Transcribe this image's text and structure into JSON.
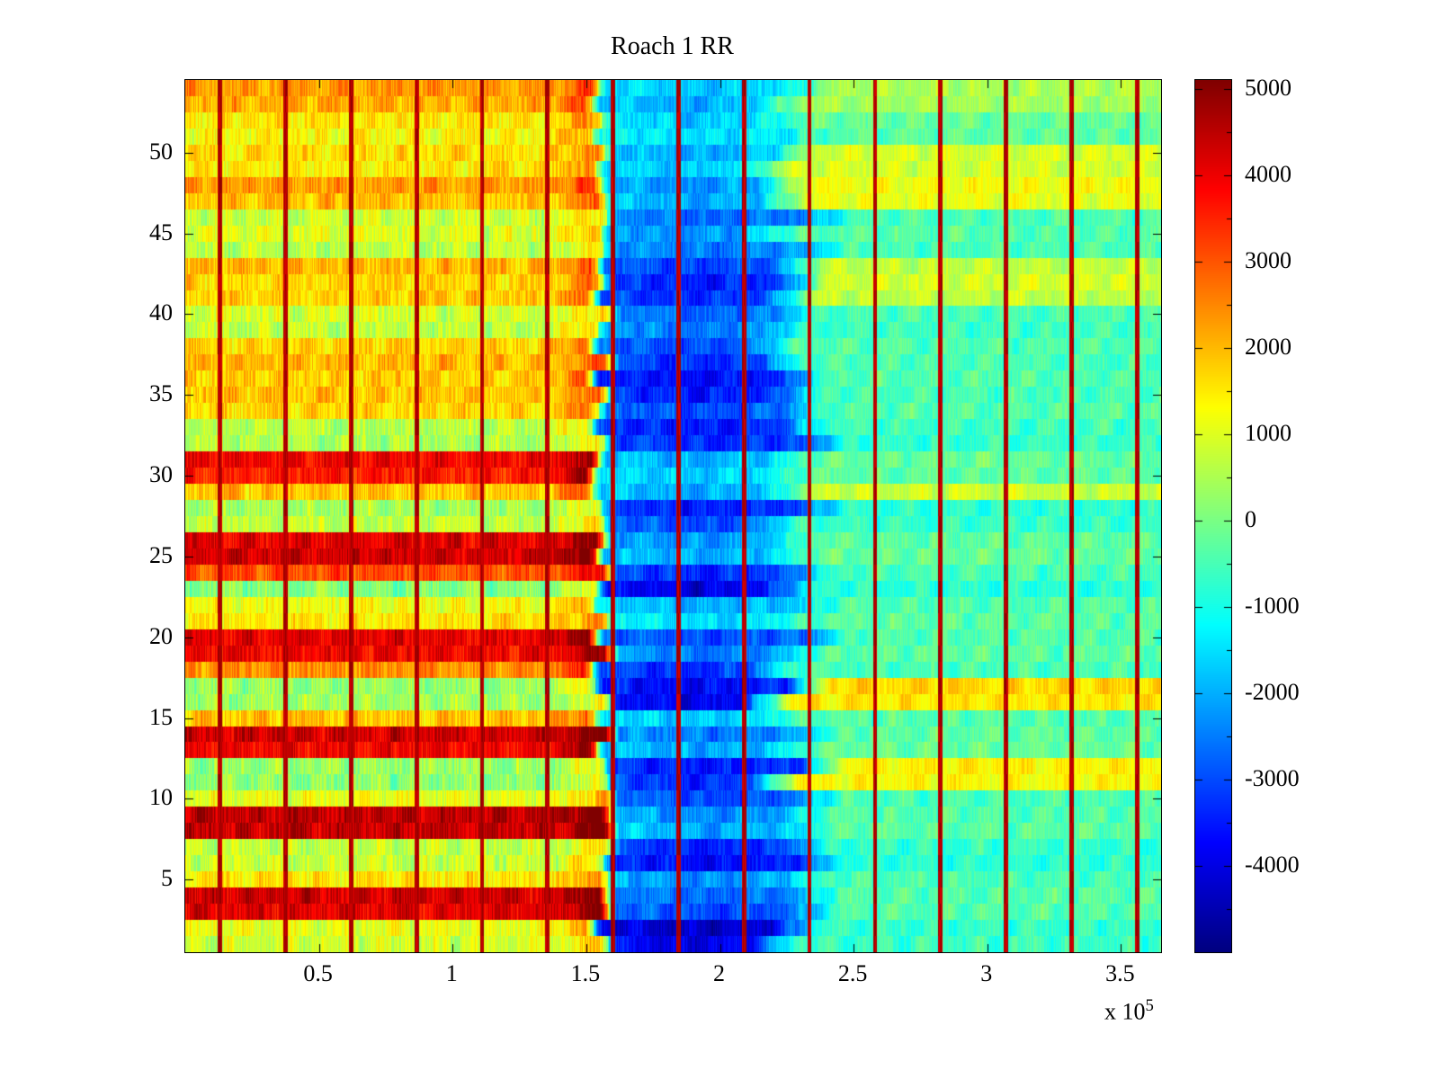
{
  "chart_data": {
    "type": "heatmap",
    "title": "Roach 1 RR",
    "colormap": "jet",
    "xlim": [
      0,
      365000
    ],
    "ylim": [
      0.5,
      54.5
    ],
    "clim": [
      -5000,
      5100
    ],
    "x_ticks": [
      50000,
      100000,
      150000,
      200000,
      250000,
      300000,
      350000
    ],
    "x_tick_labels": [
      "0.5",
      "1",
      "1.5",
      "2",
      "2.5",
      "3",
      "3.5"
    ],
    "x_exponent_label": {
      "text": "x 10",
      "exponent": "5"
    },
    "y_ticks": [
      5,
      10,
      15,
      20,
      25,
      30,
      35,
      40,
      45,
      50
    ],
    "colorbar": {
      "tick_values": [
        5000,
        4000,
        3000,
        2000,
        1000,
        0,
        -1000,
        -2000,
        -3000,
        -4000
      ],
      "minor_tick_step": 500
    },
    "regions": {
      "left_end": 156000,
      "mid_end": 230000
    },
    "stripes_x": [
      13000,
      37500,
      62000,
      86500,
      111000,
      135500,
      160000,
      184500,
      209000,
      233500,
      258000,
      282500,
      307000,
      331500,
      356000
    ],
    "row_segment_labels": [
      "left_region",
      "blue_band",
      "right_region"
    ],
    "rows_bottom_to_top": [
      [
        900,
        -3600,
        -600
      ],
      [
        1100,
        -3900,
        -700
      ],
      [
        4100,
        -2600,
        -400
      ],
      [
        4300,
        -2300,
        -400
      ],
      [
        1500,
        -1900,
        -500
      ],
      [
        800,
        -3300,
        -800
      ],
      [
        700,
        -3000,
        -700
      ],
      [
        4400,
        -1600,
        -300
      ],
      [
        4500,
        -1900,
        -400
      ],
      [
        1100,
        -2600,
        -500
      ],
      [
        200,
        -2900,
        1300
      ],
      [
        300,
        -3100,
        1400
      ],
      [
        3900,
        -1600,
        -200
      ],
      [
        4300,
        -2100,
        -300
      ],
      [
        1900,
        -1300,
        -400
      ],
      [
        400,
        -3500,
        1500
      ],
      [
        300,
        -3300,
        1700
      ],
      [
        2400,
        -2900,
        -500
      ],
      [
        3900,
        -2100,
        -300
      ],
      [
        4100,
        -2600,
        -400
      ],
      [
        1500,
        -1100,
        -300
      ],
      [
        1200,
        -1600,
        -400
      ],
      [
        100,
        -3600,
        -800
      ],
      [
        3100,
        -2900,
        -500
      ],
      [
        4300,
        -1600,
        -200
      ],
      [
        4100,
        -1900,
        -300
      ],
      [
        700,
        -2600,
        -700
      ],
      [
        400,
        -3100,
        -800
      ],
      [
        1900,
        -1600,
        800
      ],
      [
        3600,
        -1300,
        -300
      ],
      [
        3900,
        -1600,
        -200
      ],
      [
        500,
        -2900,
        -700
      ],
      [
        600,
        -3100,
        -600
      ],
      [
        1700,
        -2600,
        -400
      ],
      [
        1900,
        -3100,
        -500
      ],
      [
        1800,
        -3300,
        -400
      ],
      [
        2000,
        -2900,
        -500
      ],
      [
        1700,
        -2600,
        -400
      ],
      [
        700,
        -2100,
        -600
      ],
      [
        900,
        -2300,
        -500
      ],
      [
        1800,
        -2900,
        700
      ],
      [
        1700,
        -3100,
        900
      ],
      [
        2000,
        -2700,
        700
      ],
      [
        600,
        -2100,
        -500
      ],
      [
        1000,
        -1900,
        -400
      ],
      [
        800,
        -2300,
        -500
      ],
      [
        1900,
        -1600,
        1100
      ],
      [
        2300,
        -1900,
        1200
      ],
      [
        1500,
        -1300,
        900
      ],
      [
        1600,
        -1600,
        900
      ],
      [
        1300,
        -1100,
        -300
      ],
      [
        1500,
        -1300,
        -200
      ],
      [
        2100,
        -1600,
        400
      ],
      [
        2300,
        -1300,
        500
      ]
    ]
  }
}
